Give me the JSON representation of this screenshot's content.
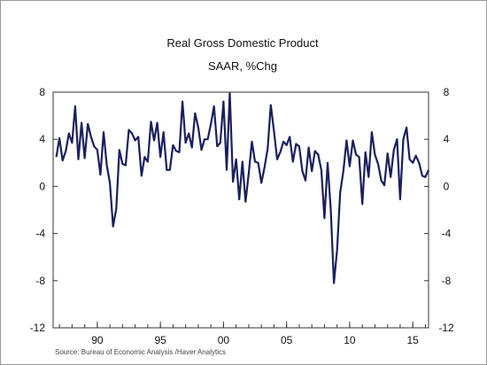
{
  "chart_data": {
    "type": "line",
    "title": "Real Gross Domestic Product",
    "subtitle": "SAAR, %Chg",
    "source": "Source:  Bureau of Economic Analysis /Haver Analytics",
    "ylim": [
      -12,
      8
    ],
    "yticks": [
      "8",
      "4",
      "0",
      "-4",
      "-8",
      "-12"
    ],
    "xlim": [
      1986.5,
      2016.25
    ],
    "xticks": [
      {
        "label": "90",
        "x": 1990
      },
      {
        "label": "95",
        "x": 1995
      },
      {
        "label": "00",
        "x": 2000
      },
      {
        "label": "05",
        "x": 2005
      },
      {
        "label": "10",
        "x": 2010
      },
      {
        "label": "15",
        "x": 2015
      }
    ],
    "grid": false,
    "line_color": "#1a1f5e",
    "series": [
      {
        "name": "",
        "x_start": 1986.75,
        "x_step": 0.25,
        "values": [
          2.5,
          4.1,
          2.2,
          3.0,
          4.5,
          3.7,
          6.8,
          2.3,
          5.4,
          2.4,
          5.3,
          4.2,
          3.4,
          3.1,
          1.0,
          4.6,
          1.8,
          0.3,
          -3.4,
          -1.9,
          3.1,
          1.9,
          1.8,
          4.8,
          4.5,
          3.9,
          4.2,
          0.9,
          2.5,
          2.1,
          5.5,
          3.9,
          5.4,
          2.5,
          4.6,
          1.4,
          1.4,
          3.5,
          3.0,
          2.9,
          7.2,
          3.7,
          4.5,
          3.3,
          6.2,
          5.0,
          3.1,
          4.0,
          4.0,
          5.3,
          6.8,
          3.4,
          3.7,
          7.2,
          1.4,
          7.9,
          0.4,
          2.3,
          -1.1,
          2.1,
          -1.3,
          1.1,
          3.8,
          2.1,
          2.0,
          0.3,
          1.6,
          3.2,
          6.9,
          4.7,
          2.3,
          2.9,
          3.8,
          3.5,
          4.2,
          2.1,
          3.6,
          3.4,
          1.3,
          0.5,
          3.3,
          1.3,
          3.0,
          2.7,
          1.4,
          -2.7,
          2.0,
          -1.9,
          -8.2,
          -5.4,
          -0.5,
          1.3,
          3.9,
          1.7,
          3.9,
          2.7,
          2.5,
          -1.5,
          2.9,
          0.8,
          4.6,
          2.7,
          1.9,
          0.5,
          0.1,
          2.8,
          0.8,
          3.1,
          4.0,
          -1.1,
          4.0,
          5.0,
          2.3,
          2.0,
          2.6,
          2.0,
          0.9,
          0.8,
          1.4
        ]
      }
    ]
  }
}
